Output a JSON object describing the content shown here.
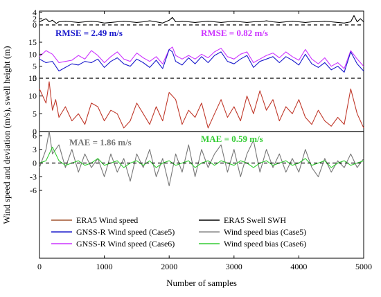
{
  "chart_data": {
    "type": "line",
    "xlabel": "Number of samples",
    "ylabel": "Wind speed and deviation (m/s), swell height (m)",
    "xlim": [
      0,
      5000
    ],
    "x_ticks": [
      "0",
      "1000",
      "2000",
      "3000",
      "4000",
      "5000"
    ],
    "grid": false,
    "legend_position": "bottom",
    "panels": [
      {
        "name": "swell",
        "ylim": [
          0,
          4
        ],
        "y_ticks": [
          "0",
          "2",
          "4"
        ],
        "series": [
          {
            "name": "ERA5 Swell SWH",
            "color": "#000000",
            "x": [
              0,
              100,
              150,
              200,
              260,
              300,
              400,
              500,
              600,
              700,
              800,
              900,
              1000,
              1100,
              1200,
              1300,
              1400,
              1500,
              1600,
              1700,
              1800,
              1900,
              2000,
              2050,
              2100,
              2150,
              2200,
              2300,
              2400,
              2500,
              2600,
              2700,
              2800,
              2900,
              3000,
              3100,
              3200,
              3300,
              3400,
              3500,
              3600,
              3700,
              3800,
              3900,
              4000,
              4100,
              4200,
              4300,
              4400,
              4500,
              4600,
              4700,
              4800,
              4850,
              4900,
              4950,
              5000
            ],
            "values": [
              1.0,
              2.0,
              1.0,
              1.5,
              0.5,
              1.0,
              1.2,
              1.0,
              0.8,
              1.0,
              1.2,
              1.0,
              0.6,
              0.8,
              1.0,
              1.2,
              1.0,
              0.8,
              1.0,
              1.3,
              1.0,
              0.6,
              1.5,
              2.4,
              1.0,
              1.0,
              1.2,
              1.0,
              0.8,
              1.0,
              1.2,
              1.0,
              0.8,
              1.0,
              1.2,
              1.0,
              0.8,
              1.0,
              1.0,
              1.3,
              1.0,
              0.8,
              1.0,
              1.2,
              1.0,
              0.8,
              1.0,
              1.0,
              1.2,
              1.0,
              0.8,
              0.6,
              1.0,
              3.0,
              1.0,
              2.0,
              1.0
            ]
          },
          {
            "name": "reference",
            "color": "#000000",
            "dashed": true,
            "x": [
              0,
              5000
            ],
            "values": [
              0,
              0
            ]
          }
        ]
      },
      {
        "name": "wind",
        "ylim": [
          0,
          15
        ],
        "y_ticks": [
          "0",
          "5",
          "10",
          "15"
        ],
        "series": [
          {
            "name": "GNSS-R Wind speed (Case6)",
            "color": "#cc33ff",
            "x": [
              0,
              100,
              200,
              300,
              400,
              500,
              600,
              700,
              800,
              900,
              1000,
              1100,
              1200,
              1300,
              1400,
              1500,
              1600,
              1700,
              1800,
              1900,
              2000,
              2050,
              2100,
              2200,
              2300,
              2400,
              2500,
              2600,
              2700,
              2800,
              2900,
              3000,
              3100,
              3200,
              3300,
              3400,
              3500,
              3600,
              3700,
              3800,
              3900,
              4000,
              4100,
              4200,
              4300,
              4400,
              4500,
              4600,
              4700,
              4800,
              4900,
              5000
            ],
            "values": [
              9.0,
              11.5,
              10.0,
              6.5,
              7.0,
              7.5,
              9.5,
              8.0,
              11.5,
              9.5,
              6.5,
              9.0,
              11.0,
              8.0,
              7.0,
              10.5,
              8.5,
              7.0,
              9.0,
              6.0,
              12.0,
              13.0,
              9.5,
              8.0,
              9.5,
              8.0,
              10.0,
              8.5,
              11.0,
              12.5,
              9.0,
              8.0,
              10.0,
              11.0,
              6.5,
              8.0,
              9.5,
              10.5,
              8.5,
              11.0,
              9.0,
              7.5,
              12.0,
              8.0,
              6.0,
              8.5,
              5.0,
              6.5,
              4.0,
              11.5,
              8.0,
              5.0
            ]
          },
          {
            "name": "GNSS-R Wind speed (Case5)",
            "color": "#1a1acc",
            "x": [
              0,
              100,
              200,
              300,
              400,
              500,
              600,
              700,
              800,
              900,
              1000,
              1100,
              1200,
              1300,
              1400,
              1500,
              1600,
              1700,
              1800,
              1900,
              2000,
              2050,
              2100,
              2200,
              2300,
              2400,
              2500,
              2600,
              2700,
              2800,
              2900,
              3000,
              3100,
              3200,
              3300,
              3400,
              3500,
              3600,
              3700,
              3800,
              3900,
              4000,
              4100,
              4200,
              4300,
              4400,
              4500,
              4600,
              4700,
              4800,
              4900,
              5000
            ],
            "values": [
              8.0,
              6.5,
              7.0,
              3.0,
              4.5,
              6.0,
              5.5,
              7.0,
              6.5,
              8.0,
              4.5,
              7.0,
              8.5,
              6.0,
              5.0,
              8.0,
              6.5,
              4.5,
              7.5,
              4.0,
              12.0,
              11.0,
              7.0,
              5.5,
              8.5,
              6.0,
              9.0,
              6.5,
              9.5,
              11.0,
              7.0,
              6.0,
              8.0,
              9.5,
              4.5,
              7.0,
              8.0,
              9.0,
              6.5,
              9.0,
              7.5,
              5.5,
              10.0,
              6.0,
              4.5,
              6.5,
              3.5,
              5.0,
              2.5,
              11.0,
              6.0,
              3.0
            ]
          },
          {
            "name": "reference",
            "color": "#000000",
            "dashed": true,
            "x": [
              0,
              5000
            ],
            "values": [
              0,
              0
            ]
          }
        ]
      },
      {
        "name": "era5",
        "ylim": [
          0,
          15
        ],
        "y_ticks": [
          "0",
          "5",
          "10",
          "15"
        ],
        "series": [
          {
            "name": "ERA5 Wind speed",
            "color": "#c0392b",
            "x": [
              0,
              100,
              150,
              200,
              250,
              300,
              400,
              500,
              600,
              700,
              800,
              900,
              1000,
              1100,
              1200,
              1300,
              1400,
              1500,
              1600,
              1700,
              1800,
              1900,
              2000,
              2100,
              2200,
              2300,
              2400,
              2500,
              2600,
              2700,
              2800,
              2900,
              3000,
              3100,
              3200,
              3300,
              3400,
              3500,
              3600,
              3700,
              3800,
              3900,
              4000,
              4100,
              4200,
              4300,
              4400,
              4500,
              4600,
              4700,
              4800,
              4900,
              5000
            ],
            "values": [
              12.0,
              8.0,
              14.0,
              6.0,
              9.0,
              4.0,
              7.0,
              3.0,
              5.0,
              2.0,
              8.0,
              7.0,
              3.0,
              6.0,
              5.0,
              1.0,
              3.0,
              8.0,
              5.0,
              2.0,
              7.0,
              3.0,
              11.0,
              9.0,
              2.0,
              6.0,
              4.0,
              8.0,
              1.0,
              5.0,
              9.0,
              4.0,
              7.0,
              3.0,
              10.0,
              5.0,
              11.5,
              6.0,
              9.0,
              3.0,
              7.0,
              5.0,
              9.0,
              4.0,
              2.0,
              6.0,
              3.0,
              1.5,
              4.0,
              2.0,
              12.0,
              5.0,
              1.0
            ]
          },
          {
            "name": "reference",
            "color": "#000000",
            "dashed": false,
            "x": [
              0,
              5000
            ],
            "values": [
              0,
              0
            ]
          }
        ]
      },
      {
        "name": "bias",
        "ylim": [
          -6,
          6
        ],
        "y_ticks": [
          "-6",
          "-3",
          "0",
          "3",
          "6"
        ],
        "series": [
          {
            "name": "Wind speed bias (Case5)",
            "color": "#777777",
            "x": [
              0,
              100,
              150,
              200,
              300,
              400,
              500,
              600,
              700,
              800,
              900,
              1000,
              1100,
              1200,
              1300,
              1400,
              1500,
              1600,
              1700,
              1800,
              1900,
              2000,
              2100,
              2200,
              2300,
              2400,
              2500,
              2600,
              2700,
              2800,
              2900,
              3000,
              3100,
              3200,
              3300,
              3400,
              3500,
              3600,
              3700,
              3800,
              3900,
              4000,
              4100,
              4200,
              4300,
              4400,
              4500,
              4600,
              4700,
              4800,
              4900,
              5000
            ],
            "values": [
              -1.0,
              3.0,
              7.0,
              2.0,
              4.0,
              -1.0,
              3.0,
              -2.0,
              2.0,
              -1.0,
              1.0,
              -3.0,
              2.0,
              -2.0,
              1.0,
              -4.0,
              2.0,
              -1.0,
              3.0,
              -3.0,
              1.0,
              -5.0,
              2.0,
              -2.0,
              4.0,
              -3.0,
              3.0,
              -1.0,
              2.0,
              4.0,
              -2.0,
              3.0,
              -3.0,
              2.0,
              5.0,
              -2.0,
              3.0,
              -1.0,
              2.0,
              -2.0,
              1.0,
              -2.0,
              3.0,
              -1.0,
              -3.0,
              1.0,
              -2.0,
              0.5,
              -1.0,
              2.0,
              -1.0,
              1.0
            ]
          },
          {
            "name": "Wind speed bias (Case6)",
            "color": "#33cc33",
            "x": [
              0,
              100,
              200,
              300,
              400,
              500,
              600,
              700,
              800,
              900,
              1000,
              1100,
              1200,
              1300,
              1400,
              1500,
              1600,
              1700,
              1800,
              1900,
              2000,
              2100,
              2200,
              2300,
              2400,
              2500,
              2600,
              2700,
              2800,
              2900,
              3000,
              3100,
              3200,
              3300,
              3400,
              3500,
              3600,
              3700,
              3800,
              3900,
              4000,
              4100,
              4200,
              4300,
              4400,
              4500,
              4600,
              4700,
              4800,
              4900,
              5000
            ],
            "values": [
              0.0,
              0.5,
              3.5,
              0.5,
              -0.5,
              0.0,
              0.5,
              -0.5,
              0.0,
              1.0,
              -0.5,
              0.0,
              0.5,
              -1.0,
              0.0,
              0.5,
              -0.5,
              0.5,
              -1.0,
              0.0,
              0.5,
              -0.5,
              0.0,
              0.5,
              -1.0,
              0.0,
              0.5,
              -0.5,
              0.5,
              0.0,
              -0.5,
              0.5,
              0.0,
              -1.0,
              0.0,
              0.5,
              -0.5,
              0.0,
              0.5,
              -0.5,
              0.0,
              1.0,
              -0.5,
              0.0,
              0.5,
              -1.0,
              0.0,
              0.5,
              -0.5,
              0.0,
              0.5
            ]
          },
          {
            "name": "reference",
            "color": "#000000",
            "dashed": true,
            "x": [
              0,
              5000
            ],
            "values": [
              0,
              0
            ]
          }
        ]
      }
    ],
    "annotations": [
      {
        "text": "RMSE = 2.49 m/s",
        "color": "#1a1acc",
        "x": 80,
        "y": 70,
        "panel": "wind"
      },
      {
        "text": "RMSE = 0.82 m/s",
        "color": "#cc33ff",
        "x": 290,
        "y": 70,
        "panel": "wind"
      },
      {
        "text": "MAE = 1.86 m/s",
        "color": "#777777",
        "x": 100,
        "y": 225,
        "panel": "bias"
      },
      {
        "text": "MAE = 0.59 m/s",
        "color": "#33cc33",
        "x": 290,
        "y": 225,
        "panel": "bias"
      }
    ],
    "legend": [
      {
        "label": "ERA5 Wind speed",
        "color": "#a0522d"
      },
      {
        "label": "ERA5 Swell SWH",
        "color": "#000000"
      },
      {
        "label": "GNSS-R Wind speed (Case5)",
        "color": "#1a1acc"
      },
      {
        "label": "Wind speed bias (Case5)",
        "color": "#888888"
      },
      {
        "label": "GNSS-R Wind speed (Case6)",
        "color": "#cc33ff"
      },
      {
        "label": "Wind speed bias (Case6)",
        "color": "#33cc33"
      }
    ]
  }
}
